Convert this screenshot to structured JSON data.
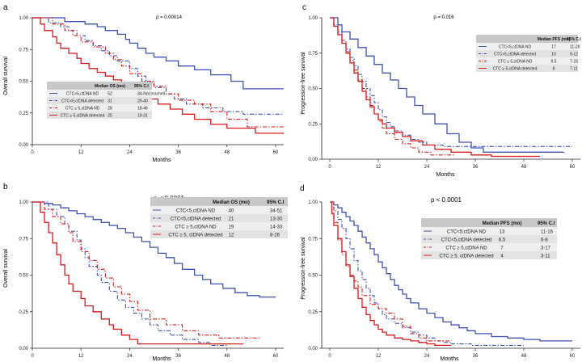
{
  "figure": {
    "series_colors": [
      "#3f51b5",
      "#3f51b5",
      "#d81b1b",
      "#d81b1b"
    ],
    "series_dash": [
      "solid",
      "dashdot",
      "dashdot",
      "solid"
    ],
    "axis_color": "#222222",
    "table_header_bg": "#c8c8c8",
    "table_row_bg": [
      "#efefef",
      "#e3e3e3"
    ]
  },
  "chart_data": [
    {
      "panel": "a",
      "type": "line",
      "step": true,
      "pvalue": "p = 0.00014",
      "xlabel": "Months",
      "ylabel": "Overall survival",
      "xlim": [
        0,
        62
      ],
      "ylim": [
        0,
        1
      ],
      "xticks": [
        0,
        12,
        24,
        36,
        48,
        60
      ],
      "yticks": [
        "0.00",
        "0.25",
        "0.50",
        "0.75",
        "1.00"
      ],
      "table": {
        "headers": [
          "",
          "Median OS (mo)",
          "95% C.I"
        ],
        "rows": [
          [
            "CTC<5,ctDNA ND",
            "52",
            "34-Not reached"
          ],
          [
            "CTC<5,ctDNA detected",
            "31",
            "29-40"
          ],
          [
            "CTC ≥ 5,ctDNA ND",
            "28",
            "18-46"
          ],
          [
            "CTC ≥ 5,ctDNA detected",
            "25",
            "19-31"
          ]
        ]
      },
      "series": [
        {
          "name": "CTC<5,ctDNA ND",
          "x": [
            0,
            8,
            13,
            16,
            18,
            21,
            23,
            24,
            26,
            28,
            30,
            33,
            36,
            40,
            44,
            49,
            52,
            55,
            62
          ],
          "y": [
            1,
            0.97,
            0.95,
            0.93,
            0.9,
            0.87,
            0.83,
            0.8,
            0.76,
            0.72,
            0.69,
            0.66,
            0.62,
            0.59,
            0.55,
            0.5,
            0.44,
            0.44,
            0.44
          ]
        },
        {
          "name": "CTC<5,ctDNA detected",
          "x": [
            0,
            4,
            7,
            9,
            11,
            13,
            15,
            17,
            19,
            21,
            24,
            26,
            28,
            30,
            33,
            35,
            38,
            42,
            47,
            52,
            62
          ],
          "y": [
            1,
            0.96,
            0.93,
            0.9,
            0.86,
            0.82,
            0.78,
            0.74,
            0.7,
            0.66,
            0.6,
            0.54,
            0.49,
            0.45,
            0.4,
            0.36,
            0.32,
            0.29,
            0.26,
            0.24,
            0.24
          ]
        },
        {
          "name": "CTC ≥ 5,ctDNA ND",
          "x": [
            0,
            5,
            8,
            10,
            12,
            15,
            18,
            20,
            22,
            24,
            27,
            30,
            33,
            36,
            40,
            44,
            48,
            53,
            62
          ],
          "y": [
            1,
            0.95,
            0.9,
            0.86,
            0.81,
            0.77,
            0.72,
            0.67,
            0.62,
            0.56,
            0.5,
            0.46,
            0.4,
            0.35,
            0.32,
            0.26,
            0.2,
            0.14,
            0.14
          ]
        },
        {
          "name": "CTC ≥ 5,ctDNA detected",
          "x": [
            0,
            2,
            3,
            5,
            6,
            7,
            9,
            11,
            12,
            14,
            16,
            18,
            20,
            22,
            24,
            26,
            28,
            31,
            34,
            37,
            40,
            44,
            48,
            55,
            62
          ],
          "y": [
            1,
            0.95,
            0.9,
            0.85,
            0.8,
            0.76,
            0.72,
            0.68,
            0.64,
            0.6,
            0.57,
            0.54,
            0.51,
            0.47,
            0.43,
            0.4,
            0.36,
            0.32,
            0.28,
            0.24,
            0.2,
            0.16,
            0.13,
            0.09,
            0.09
          ]
        }
      ]
    },
    {
      "panel": "b",
      "type": "line",
      "step": true,
      "pvalue": "p < 0.0001",
      "xlabel": "Months",
      "ylabel": "Overall survival",
      "xlim": [
        0,
        62
      ],
      "ylim": [
        0,
        1
      ],
      "xticks": [
        0,
        12,
        24,
        36,
        48,
        60
      ],
      "yticks": [
        "0.00",
        "0.25",
        "0.50",
        "0.75",
        "1.00"
      ],
      "table": {
        "headers": [
          "",
          "Median OS (mo)",
          "95% C.I"
        ],
        "rows": [
          [
            "CTC<5,ctDNA ND",
            "40",
            "34-51"
          ],
          [
            "CTC<5,ctDNA detected",
            "21",
            "13-30"
          ],
          [
            "CTC ≥ 5,ctDNA ND",
            "19",
            "14-33"
          ],
          [
            "CTC ≥ 5, ctDNA detected",
            "12",
            "8-26"
          ]
        ]
      },
      "series": [
        {
          "name": "CTC<5,ctDNA ND",
          "x": [
            0,
            3,
            5,
            7,
            9,
            11,
            13,
            15,
            17,
            19,
            21,
            23,
            25,
            27,
            29,
            31,
            33,
            35,
            37,
            40,
            42,
            44,
            47,
            50,
            53,
            56,
            60
          ],
          "y": [
            1,
            0.99,
            0.98,
            0.96,
            0.94,
            0.92,
            0.9,
            0.88,
            0.86,
            0.84,
            0.82,
            0.79,
            0.76,
            0.73,
            0.69,
            0.65,
            0.62,
            0.58,
            0.54,
            0.5,
            0.47,
            0.44,
            0.41,
            0.38,
            0.36,
            0.35,
            0.35
          ]
        },
        {
          "name": "CTC<5,ctDNA detected",
          "x": [
            0,
            4,
            6,
            8,
            9,
            11,
            12,
            13,
            14,
            16,
            17,
            19,
            21,
            23,
            25,
            27,
            29,
            31,
            34,
            37,
            41,
            44,
            48
          ],
          "y": [
            1,
            0.95,
            0.9,
            0.85,
            0.8,
            0.74,
            0.68,
            0.62,
            0.56,
            0.5,
            0.45,
            0.39,
            0.33,
            0.28,
            0.24,
            0.2,
            0.16,
            0.12,
            0.09,
            0.06,
            0.04,
            0.02,
            0.02
          ]
        },
        {
          "name": "CTC ≥ 5,ctDNA ND",
          "x": [
            0,
            3,
            5,
            7,
            9,
            10,
            12,
            14,
            16,
            18,
            20,
            22,
            24,
            26,
            29,
            33,
            37,
            41,
            46,
            50,
            53,
            56
          ],
          "y": [
            1,
            0.95,
            0.9,
            0.85,
            0.79,
            0.73,
            0.66,
            0.6,
            0.54,
            0.48,
            0.42,
            0.37,
            0.32,
            0.26,
            0.2,
            0.16,
            0.12,
            0.09,
            0.07,
            0.07,
            0.07,
            0.07
          ]
        },
        {
          "name": "CTC ≥ 5, ctDNA detected",
          "x": [
            0,
            2,
            3,
            4,
            5,
            6,
            7,
            8,
            9,
            10,
            12,
            13,
            15,
            17,
            19,
            20,
            22,
            24,
            26,
            30,
            36,
            44,
            52
          ],
          "y": [
            1,
            0.93,
            0.86,
            0.79,
            0.72,
            0.64,
            0.57,
            0.5,
            0.44,
            0.39,
            0.34,
            0.29,
            0.25,
            0.2,
            0.16,
            0.13,
            0.09,
            0.06,
            0.03,
            0.03,
            0.03,
            0.03,
            0.03
          ]
        }
      ]
    },
    {
      "panel": "c",
      "type": "line",
      "step": true,
      "pvalue": "p = 0.016",
      "xlabel": "Months",
      "ylabel": "Progression-free survival",
      "xlim": [
        -2,
        62
      ],
      "ylim": [
        0,
        1
      ],
      "xticks": [
        0,
        12,
        24,
        36,
        48,
        60
      ],
      "yticks": [
        "0.00",
        "0.25",
        "0.50",
        "0.75",
        "1.00"
      ],
      "table": {
        "headers": [
          "",
          "Median PFS (mo)",
          "95% C.I"
        ],
        "rows": [
          [
            "CTC<5,ctDNA ND",
            "17",
            "11-28"
          ],
          [
            "CTC<5,ctDNA detected",
            "10",
            "9-12"
          ],
          [
            "CTC ≥ 5,ctDNA ND",
            "9.5",
            "7-15"
          ],
          [
            "CTC ≥ 5,ctDNA detected",
            "8",
            "7-11"
          ]
        ]
      },
      "series": [
        {
          "name": "CTC<5,ctDNA ND",
          "x": [
            0,
            2,
            3,
            5,
            7,
            9,
            11,
            13,
            15,
            17,
            19,
            21,
            23,
            26,
            29,
            32,
            35,
            38,
            58
          ],
          "y": [
            1,
            0.95,
            0.9,
            0.85,
            0.79,
            0.73,
            0.67,
            0.61,
            0.56,
            0.5,
            0.44,
            0.38,
            0.32,
            0.25,
            0.18,
            0.12,
            0.08,
            0.05,
            0.05
          ]
        },
        {
          "name": "CTC<5,ctDNA detected",
          "x": [
            0,
            1,
            2,
            3,
            4,
            5,
            6,
            7,
            8,
            9,
            10,
            11,
            12,
            13,
            14,
            15,
            16,
            18,
            20,
            22,
            24,
            28,
            60
          ],
          "y": [
            1,
            0.95,
            0.9,
            0.84,
            0.78,
            0.72,
            0.66,
            0.6,
            0.55,
            0.5,
            0.45,
            0.4,
            0.35,
            0.3,
            0.26,
            0.23,
            0.2,
            0.17,
            0.14,
            0.12,
            0.1,
            0.09,
            0.09
          ]
        },
        {
          "name": "CTC ≥ 5,ctDNA ND",
          "x": [
            0,
            1,
            2,
            3,
            4,
            5,
            6,
            7,
            8,
            9,
            10,
            11,
            12,
            13,
            14,
            16,
            18,
            20,
            22,
            25,
            28,
            31
          ],
          "y": [
            1,
            0.94,
            0.88,
            0.82,
            0.76,
            0.7,
            0.63,
            0.56,
            0.5,
            0.44,
            0.38,
            0.32,
            0.27,
            0.22,
            0.18,
            0.14,
            0.11,
            0.08,
            0.05,
            0.03,
            0.03,
            0.03
          ]
        },
        {
          "name": "CTC ≥ 5,ctDNA detected",
          "x": [
            0,
            1,
            2,
            3,
            4,
            5,
            6,
            7,
            8,
            9,
            10,
            11,
            12,
            13,
            14,
            16,
            18,
            20,
            23,
            26,
            30,
            35,
            40,
            45,
            52
          ],
          "y": [
            1,
            0.94,
            0.88,
            0.82,
            0.75,
            0.68,
            0.61,
            0.55,
            0.48,
            0.42,
            0.37,
            0.32,
            0.28,
            0.25,
            0.22,
            0.19,
            0.16,
            0.13,
            0.1,
            0.07,
            0.05,
            0.03,
            0.02,
            0.02,
            0.02
          ]
        }
      ]
    },
    {
      "panel": "d",
      "type": "line",
      "step": true,
      "pvalue": "p < 0.0001",
      "xlabel": "Months",
      "ylabel": "Progression-free survival",
      "xlim": [
        -2,
        62
      ],
      "ylim": [
        0,
        1
      ],
      "xticks": [
        0,
        12,
        24,
        36,
        48,
        60
      ],
      "yticks": [
        "0.00",
        "0.25",
        "0.50",
        "0.75",
        "1.00"
      ],
      "table": {
        "headers": [
          "",
          "Median PFS (mo)",
          "95% C.I"
        ],
        "rows": [
          [
            "CTC<5,ctDNA ND",
            "13",
            "11-16"
          ],
          [
            "CTC<5,ctDNA detected",
            "6.5",
            "6-8"
          ],
          [
            "CTC ≥ 5,ctDNA ND",
            "7",
            "3-17"
          ],
          [
            "CTC ≥ 5, ctDNA detected",
            "4",
            "3-11"
          ]
        ]
      },
      "series": [
        {
          "name": "CTC<5,ctDNA ND",
          "x": [
            0,
            1,
            2,
            3,
            4,
            5,
            6,
            7,
            8,
            9,
            10,
            11,
            12,
            13,
            14,
            15,
            16,
            17,
            18,
            19,
            20,
            22,
            24,
            26,
            28,
            30,
            32,
            34,
            36,
            40,
            44,
            48,
            52,
            56,
            60
          ],
          "y": [
            1,
            0.98,
            0.96,
            0.93,
            0.9,
            0.87,
            0.84,
            0.8,
            0.76,
            0.72,
            0.68,
            0.64,
            0.59,
            0.55,
            0.51,
            0.47,
            0.43,
            0.4,
            0.37,
            0.34,
            0.31,
            0.27,
            0.24,
            0.21,
            0.18,
            0.16,
            0.14,
            0.12,
            0.1,
            0.08,
            0.07,
            0.06,
            0.05,
            0.05,
            0.05
          ]
        },
        {
          "name": "CTC<5,ctDNA detected",
          "x": [
            0,
            1,
            2,
            3,
            4,
            5,
            6,
            7,
            8,
            9,
            10,
            11,
            12,
            13,
            14,
            16,
            18,
            20,
            22,
            24,
            26,
            28,
            30,
            35,
            40,
            45,
            48
          ],
          "y": [
            1,
            0.94,
            0.88,
            0.82,
            0.75,
            0.68,
            0.6,
            0.53,
            0.47,
            0.41,
            0.36,
            0.31,
            0.27,
            0.23,
            0.2,
            0.17,
            0.14,
            0.11,
            0.09,
            0.07,
            0.05,
            0.04,
            0.03,
            0.02,
            0.02,
            0.02,
            0.02
          ]
        },
        {
          "name": "CTC ≥ 5,ctDNA ND",
          "x": [
            0,
            1,
            2,
            3,
            4,
            5,
            6,
            7,
            8,
            10,
            12,
            14,
            16,
            18,
            20,
            22,
            24,
            27,
            30
          ],
          "y": [
            1,
            0.86,
            0.74,
            0.64,
            0.56,
            0.5,
            0.46,
            0.42,
            0.36,
            0.3,
            0.27,
            0.24,
            0.2,
            0.15,
            0.1,
            0.07,
            0.05,
            0.05,
            0.05
          ]
        },
        {
          "name": "CTC ≥ 5, ctDNA detected",
          "x": [
            0,
            0.5,
            1,
            2,
            3,
            4,
            5,
            6,
            7,
            8,
            9,
            10,
            11,
            12,
            13,
            14,
            16,
            18,
            20,
            22,
            24,
            26,
            28,
            30
          ],
          "y": [
            1,
            0.92,
            0.84,
            0.75,
            0.66,
            0.57,
            0.49,
            0.41,
            0.34,
            0.28,
            0.23,
            0.19,
            0.16,
            0.13,
            0.11,
            0.09,
            0.07,
            0.06,
            0.05,
            0.04,
            0.03,
            0.02,
            0.02,
            0.02
          ]
        }
      ]
    }
  ]
}
